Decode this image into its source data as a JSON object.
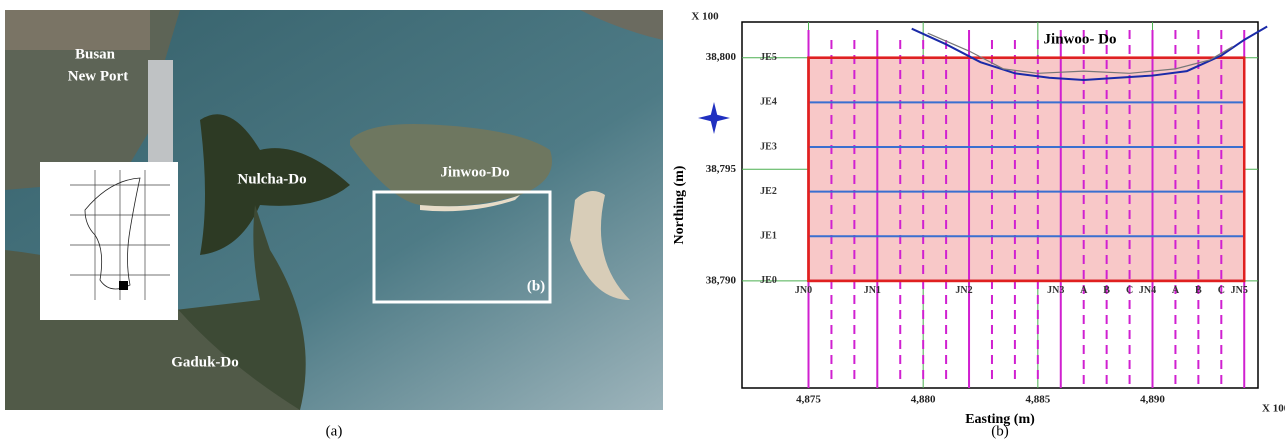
{
  "map_panel": {
    "labels": {
      "port_line1": "Busan",
      "port_line2": "New Port",
      "nulcha": "Nulcha-Do",
      "jinwoo": "Jinwoo-Do",
      "gaduk": "Gaduk-Do",
      "inset": "(b)"
    },
    "caption": "(a)"
  },
  "chart_data": {
    "type": "survey-grid",
    "caption": "(b)",
    "annotation": "Jinwoo- Do",
    "xlabel": "Easting (m)",
    "ylabel": "Northing (m)",
    "x_scale_label": "X 100",
    "y_scale_label": "X 100",
    "xlim": [
      4872.1,
      4894.6
    ],
    "ylim": [
      38785.2,
      38801.6
    ],
    "xticks": [
      {
        "value": 4875,
        "label": "4,875"
      },
      {
        "value": 4880,
        "label": "4,880"
      },
      {
        "value": 4885,
        "label": "4,885"
      },
      {
        "value": 4890,
        "label": "4,890"
      }
    ],
    "yticks": [
      {
        "value": 38790,
        "label": "38,790"
      },
      {
        "value": 38795,
        "label": "38,795"
      },
      {
        "value": 38800,
        "label": "38,800"
      }
    ],
    "grid": true,
    "grid_color": "#4caf50",
    "survey_area": {
      "x": [
        4875,
        4894
      ],
      "y": [
        38790,
        38800
      ],
      "color": "#e02020",
      "fill": "#f8c8c8"
    },
    "transects_y": [
      {
        "value": 38790,
        "label": "JE0"
      },
      {
        "value": 38792,
        "label": "JE1"
      },
      {
        "value": 38794,
        "label": "JE2"
      },
      {
        "value": 38796,
        "label": "JE3"
      },
      {
        "value": 38798,
        "label": "JE4"
      },
      {
        "value": 38800,
        "label": "JE5"
      }
    ],
    "transects_y_color": "#3a6fd0",
    "transects_x": [
      {
        "value": 4875,
        "label": "JN0",
        "dashed": false
      },
      {
        "value": 4878,
        "label": "JN1",
        "dashed": false
      },
      {
        "value": 4882,
        "label": "JN2",
        "dashed": false
      },
      {
        "value": 4886,
        "label": "JN3",
        "dashed": false
      },
      {
        "value": 4887,
        "label": "A",
        "dashed": true
      },
      {
        "value": 4888,
        "label": "B",
        "dashed": true
      },
      {
        "value": 4889,
        "label": "C",
        "dashed": true
      },
      {
        "value": 4890,
        "label": "JN4",
        "dashed": false
      },
      {
        "value": 4891,
        "label": "A",
        "dashed": true
      },
      {
        "value": 4892,
        "label": "B",
        "dashed": true
      },
      {
        "value": 4893,
        "label": "C",
        "dashed": true
      },
      {
        "value": 4894,
        "label": "JN5",
        "dashed": false
      }
    ],
    "dashed_x": [
      4876,
      4877,
      4879,
      4880,
      4881,
      4883,
      4884,
      4885
    ],
    "transects_x_color": "#d020d0",
    "series": [
      {
        "color": "#1a2aa8",
        "x": [
          4879.5,
          4881,
          4882.5,
          4884,
          4885.5,
          4887,
          4888.5,
          4890,
          4891.5,
          4893,
          4894,
          4895
        ],
        "y": [
          38801.3,
          38800.6,
          38799.8,
          38799.3,
          38799.1,
          38799.0,
          38799.1,
          38799.2,
          38799.4,
          38800.1,
          38800.8,
          38801.4
        ]
      },
      {
        "color": "#777777",
        "x": [
          4880.2,
          4882,
          4883.5,
          4885,
          4887,
          4889,
          4891,
          4892.5,
          4893.5
        ],
        "y": [
          38801.1,
          38800.3,
          38799.5,
          38799.3,
          38799.4,
          38799.3,
          38799.5,
          38799.9,
          38800.5
        ]
      }
    ]
  }
}
